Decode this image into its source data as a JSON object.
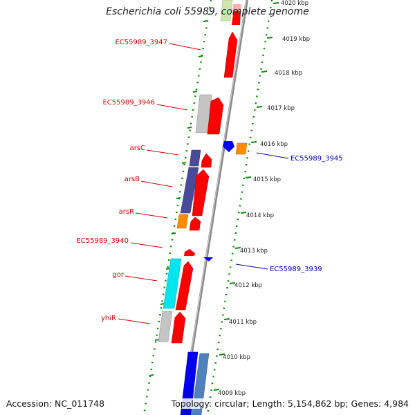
{
  "title": "Escherichia coli 55989, complete genome",
  "accession": "Accession: NC_011748",
  "topology": "Topology: circular; Length: 5,154,862 bp; Genes: 4,984",
  "ticks": [
    "4020 kbp",
    "4019 kbp",
    "4018 kbp",
    "4017 kbp",
    "4016 kbp",
    "4015 kbp",
    "4014 kbp",
    "4013 kbp",
    "4012 kbp",
    "4011 kbp",
    "4010 kbp",
    "4009 kbp"
  ],
  "gene_labels_left": [
    "EC55989_3947",
    "EC55989_3946",
    "arsC",
    "arsB",
    "arsR",
    "EC55989_3940",
    "gor",
    "yhiR"
  ],
  "gene_labels_right": [
    "EC55989_3945",
    "EC55989_3939"
  ],
  "colors": {
    "red": "#ff0000",
    "blue": "#0000ee",
    "gray": "#c4c4c4",
    "navy": "#4a4a9a",
    "orange": "#ff8c00",
    "cyan": "#00e5ee",
    "steel": "#4f81bd",
    "green": "#007a00",
    "pale_green": "#cfe6b0"
  }
}
